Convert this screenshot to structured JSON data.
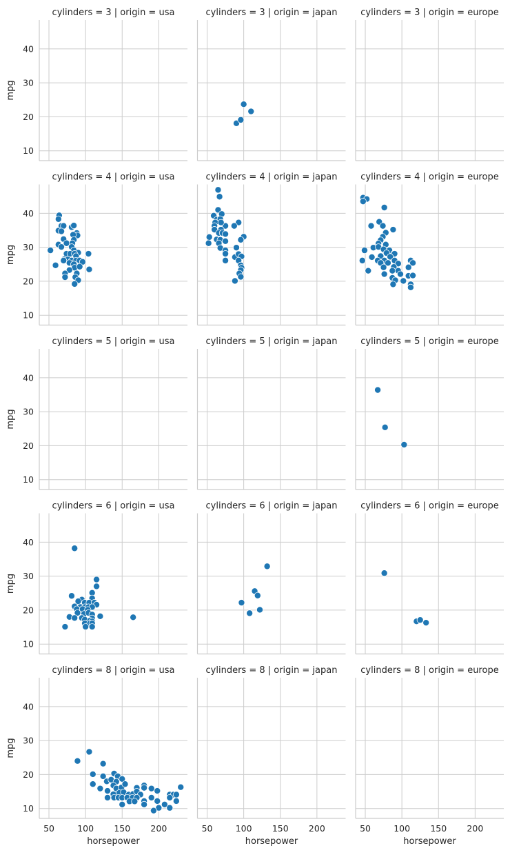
{
  "chart_data": {
    "type": "scatter",
    "facet_rows_var": "cylinders",
    "facet_cols_var": "origin",
    "rows": [
      3,
      4,
      5,
      6,
      8
    ],
    "cols": [
      "usa",
      "japan",
      "europe"
    ],
    "xlabel": "horsepower",
    "ylabel": "mpg",
    "xlim": [
      36.8,
      239.2
    ],
    "ylim": [
      7.1,
      48.5
    ],
    "xticks": [
      50,
      100,
      150,
      200
    ],
    "yticks": [
      10,
      20,
      30,
      40
    ],
    "grid": true,
    "colors": {
      "point": "#1f77b4",
      "point_edge": "#ffffff",
      "grid": "#cccccc",
      "spine": "#cccccc"
    },
    "panels": [
      {
        "title": "cylinders = 3 | origin = usa",
        "points": []
      },
      {
        "title": "cylinders = 3 | origin = japan",
        "points": [
          [
            90,
            18.1
          ],
          [
            96,
            19.1
          ],
          [
            100,
            23.7
          ],
          [
            110,
            21.6
          ]
        ]
      },
      {
        "title": "cylinders = 3 | origin = europe",
        "points": []
      },
      {
        "title": "cylinders = 4 | origin = usa",
        "points": [
          [
            64,
            39.4
          ],
          [
            63,
            38.3
          ],
          [
            67,
            36.3
          ],
          [
            70,
            36.3
          ],
          [
            63,
            34.9
          ],
          [
            67,
            34.7
          ],
          [
            81,
            35.9
          ],
          [
            84,
            36.4
          ],
          [
            88,
            34.2
          ],
          [
            89,
            33.5
          ],
          [
            83,
            33.7
          ],
          [
            70,
            32.4
          ],
          [
            84,
            32.2
          ],
          [
            74,
            31.2
          ],
          [
            82,
            31.2
          ],
          [
            63,
            30.8
          ],
          [
            67,
            30.1
          ],
          [
            81,
            30.1
          ],
          [
            52,
            29.1
          ],
          [
            84,
            29.1
          ],
          [
            90,
            28.4
          ],
          [
            104,
            28.1
          ],
          [
            74,
            28.1
          ],
          [
            79,
            28.1
          ],
          [
            85,
            28.1
          ],
          [
            87,
            27.4
          ],
          [
            71,
            26.5
          ],
          [
            76,
            26.4
          ],
          [
            81,
            26.1
          ],
          [
            87,
            26.1
          ],
          [
            92,
            26.1
          ],
          [
            96,
            25.7
          ],
          [
            70,
            26.1
          ],
          [
            78,
            25.4
          ],
          [
            84,
            25
          ],
          [
            59,
            24.7
          ],
          [
            85,
            24
          ],
          [
            92,
            24.3
          ],
          [
            78,
            23.3
          ],
          [
            105,
            23.5
          ],
          [
            72,
            22.3
          ],
          [
            88,
            22.3
          ],
          [
            72,
            21.2
          ],
          [
            86,
            21.2
          ],
          [
            90,
            20.3
          ],
          [
            85,
            19.2
          ]
        ]
      },
      {
        "title": "cylinders = 4 | origin = japan",
        "points": [
          [
            65,
            46.9
          ],
          [
            67,
            44.9
          ],
          [
            65,
            41
          ],
          [
            70,
            39.8
          ],
          [
            59,
            39.3
          ],
          [
            63,
            38.1
          ],
          [
            68,
            38.3
          ],
          [
            61,
            37.3
          ],
          [
            75,
            36.3
          ],
          [
            60,
            36.3
          ],
          [
            69,
            37.3
          ],
          [
            93,
            37.3
          ],
          [
            87,
            36.3
          ],
          [
            60,
            35.2
          ],
          [
            69,
            35.2
          ],
          [
            66,
            34.2
          ],
          [
            71,
            34.2
          ],
          [
            75,
            33.9
          ],
          [
            53,
            33
          ],
          [
            100,
            33.1
          ],
          [
            96,
            32.2
          ],
          [
            63,
            32.3
          ],
          [
            68,
            32.2
          ],
          [
            75,
            31.8
          ],
          [
            52,
            31.2
          ],
          [
            66,
            31.2
          ],
          [
            68,
            29.8
          ],
          [
            90,
            29.9
          ],
          [
            75,
            29.1
          ],
          [
            75,
            28.1
          ],
          [
            88,
            27.1
          ],
          [
            93,
            28
          ],
          [
            97,
            27.3
          ],
          [
            75,
            26.1
          ],
          [
            93,
            26.1
          ],
          [
            96,
            24.7
          ],
          [
            97,
            24
          ],
          [
            96,
            23.3
          ],
          [
            94,
            22.3
          ],
          [
            96,
            21.3
          ],
          [
            88,
            20.1
          ]
        ]
      },
      {
        "title": "cylinders = 4 | origin = europe",
        "points": [
          [
            47,
            44.6
          ],
          [
            52,
            44.2
          ],
          [
            47,
            43.5
          ],
          [
            76,
            41.7
          ],
          [
            58,
            36.3
          ],
          [
            69,
            37.5
          ],
          [
            74,
            36.3
          ],
          [
            88,
            35.2
          ],
          [
            78,
            34.3
          ],
          [
            74,
            33.1
          ],
          [
            71,
            32.1
          ],
          [
            68,
            31.1
          ],
          [
            78,
            30.8
          ],
          [
            61,
            29.9
          ],
          [
            68,
            30.1
          ],
          [
            75,
            29.4
          ],
          [
            49,
            29.1
          ],
          [
            83,
            29.1
          ],
          [
            79,
            28.3
          ],
          [
            89,
            28.1
          ],
          [
            90,
            28.1
          ],
          [
            84,
            27.2
          ],
          [
            59,
            27.1
          ],
          [
            71,
            27.4
          ],
          [
            46,
            26.1
          ],
          [
            67,
            26.1
          ],
          [
            76,
            26.1
          ],
          [
            90,
            26.1
          ],
          [
            112,
            26.1
          ],
          [
            115,
            25.4
          ],
          [
            71,
            25.4
          ],
          [
            81,
            25.4
          ],
          [
            95,
            25.2
          ],
          [
            75,
            24.1
          ],
          [
            89,
            24.2
          ],
          [
            109,
            24.1
          ],
          [
            54,
            23.1
          ],
          [
            87,
            23.1
          ],
          [
            95,
            23.1
          ],
          [
            76,
            22.1
          ],
          [
            98,
            22.1
          ],
          [
            87,
            21
          ],
          [
            109,
            21.6
          ],
          [
            115,
            21.7
          ],
          [
            91,
            20.3
          ],
          [
            102,
            20.1
          ],
          [
            88,
            19.1
          ],
          [
            112,
            19.1
          ],
          [
            112,
            18.2
          ]
        ]
      },
      {
        "title": "cylinders = 5 | origin = usa",
        "points": []
      },
      {
        "title": "cylinders = 5 | origin = japan",
        "points": []
      },
      {
        "title": "cylinders = 5 | origin = europe",
        "points": [
          [
            67,
            36.4
          ],
          [
            77,
            25.4
          ],
          [
            103,
            20.3
          ]
        ]
      },
      {
        "title": "cylinders = 6 | origin = usa",
        "points": [
          [
            85,
            38.2
          ],
          [
            115,
            29
          ],
          [
            115,
            27
          ],
          [
            109,
            25.1
          ],
          [
            81,
            24.2
          ],
          [
            95,
            23.1
          ],
          [
            90,
            22.6
          ],
          [
            109,
            23.5
          ],
          [
            99,
            22.2
          ],
          [
            105,
            22.2
          ],
          [
            112,
            22.2
          ],
          [
            115,
            21.6
          ],
          [
            85,
            21.1
          ],
          [
            93,
            20.9
          ],
          [
            99,
            20.9
          ],
          [
            104,
            20.9
          ],
          [
            109,
            20.9
          ],
          [
            88,
            20.3
          ],
          [
            96,
            20.3
          ],
          [
            103,
            20.1
          ],
          [
            89,
            19.2
          ],
          [
            98,
            18.9
          ],
          [
            104,
            19.2
          ],
          [
            109,
            18.7
          ],
          [
            78,
            18
          ],
          [
            85,
            17.7
          ],
          [
            95,
            17.7
          ],
          [
            120,
            18.2
          ],
          [
            109,
            17.6
          ],
          [
            165,
            17.9
          ],
          [
            99,
            17.2
          ],
          [
            106,
            16.9
          ],
          [
            109,
            16.7
          ],
          [
            99,
            16.1
          ],
          [
            106,
            16.1
          ],
          [
            109,
            16.1
          ],
          [
            72,
            15.1
          ],
          [
            100,
            15.1
          ],
          [
            109,
            15.1
          ]
        ]
      },
      {
        "title": "cylinders = 6 | origin = japan",
        "points": [
          [
            97,
            22.2
          ],
          [
            108,
            19.1
          ],
          [
            115,
            25.6
          ],
          [
            119,
            24.3
          ],
          [
            122,
            20.1
          ],
          [
            132,
            32.9
          ]
        ]
      },
      {
        "title": "cylinders = 6 | origin = europe",
        "points": [
          [
            76,
            30.9
          ],
          [
            120,
            16.7
          ],
          [
            125,
            17.1
          ],
          [
            133,
            16.3
          ]
        ]
      },
      {
        "title": "cylinders = 8 | origin = usa",
        "points": [
          [
            105,
            26.7
          ],
          [
            89,
            24
          ],
          [
            124,
            23.2
          ],
          [
            110,
            20.1
          ],
          [
            110,
            17.2
          ],
          [
            124,
            19.5
          ],
          [
            139,
            20.3
          ],
          [
            144,
            19.5
          ],
          [
            150,
            18.7
          ],
          [
            129,
            18
          ],
          [
            135,
            18.5
          ],
          [
            142,
            17.9
          ],
          [
            138,
            16.8
          ],
          [
            120,
            15.9
          ],
          [
            130,
            15.2
          ],
          [
            142,
            15.9
          ],
          [
            149,
            16.2
          ],
          [
            154,
            17.2
          ],
          [
            170,
            16.1
          ],
          [
            180,
            16.8
          ],
          [
            180,
            16.1
          ],
          [
            190,
            15.9
          ],
          [
            198,
            15.2
          ],
          [
            230,
            16.3
          ],
          [
            138,
            14.2
          ],
          [
            146,
            14.6
          ],
          [
            152,
            14.8
          ],
          [
            159,
            14.1
          ],
          [
            165,
            14.3
          ],
          [
            170,
            15
          ],
          [
            175,
            14.1
          ],
          [
            130,
            13.2
          ],
          [
            139,
            13.2
          ],
          [
            145,
            13.2
          ],
          [
            150,
            13.2
          ],
          [
            157,
            13.2
          ],
          [
            164,
            13.2
          ],
          [
            170,
            13.2
          ],
          [
            190,
            13.2
          ],
          [
            215,
            14.1
          ],
          [
            220,
            14.1
          ],
          [
            224,
            14.1
          ],
          [
            215,
            13.2
          ],
          [
            160,
            12.1
          ],
          [
            167,
            12.1
          ],
          [
            180,
            12.2
          ],
          [
            198,
            12.2
          ],
          [
            224,
            12.2
          ],
          [
            180,
            11.2
          ],
          [
            150,
            11.2
          ],
          [
            208,
            11.2
          ],
          [
            200,
            10.2
          ],
          [
            215,
            10.2
          ],
          [
            193,
            9.4
          ]
        ]
      },
      {
        "title": "cylinders = 8 | origin = japan",
        "points": []
      },
      {
        "title": "cylinders = 8 | origin = europe",
        "points": []
      }
    ]
  }
}
